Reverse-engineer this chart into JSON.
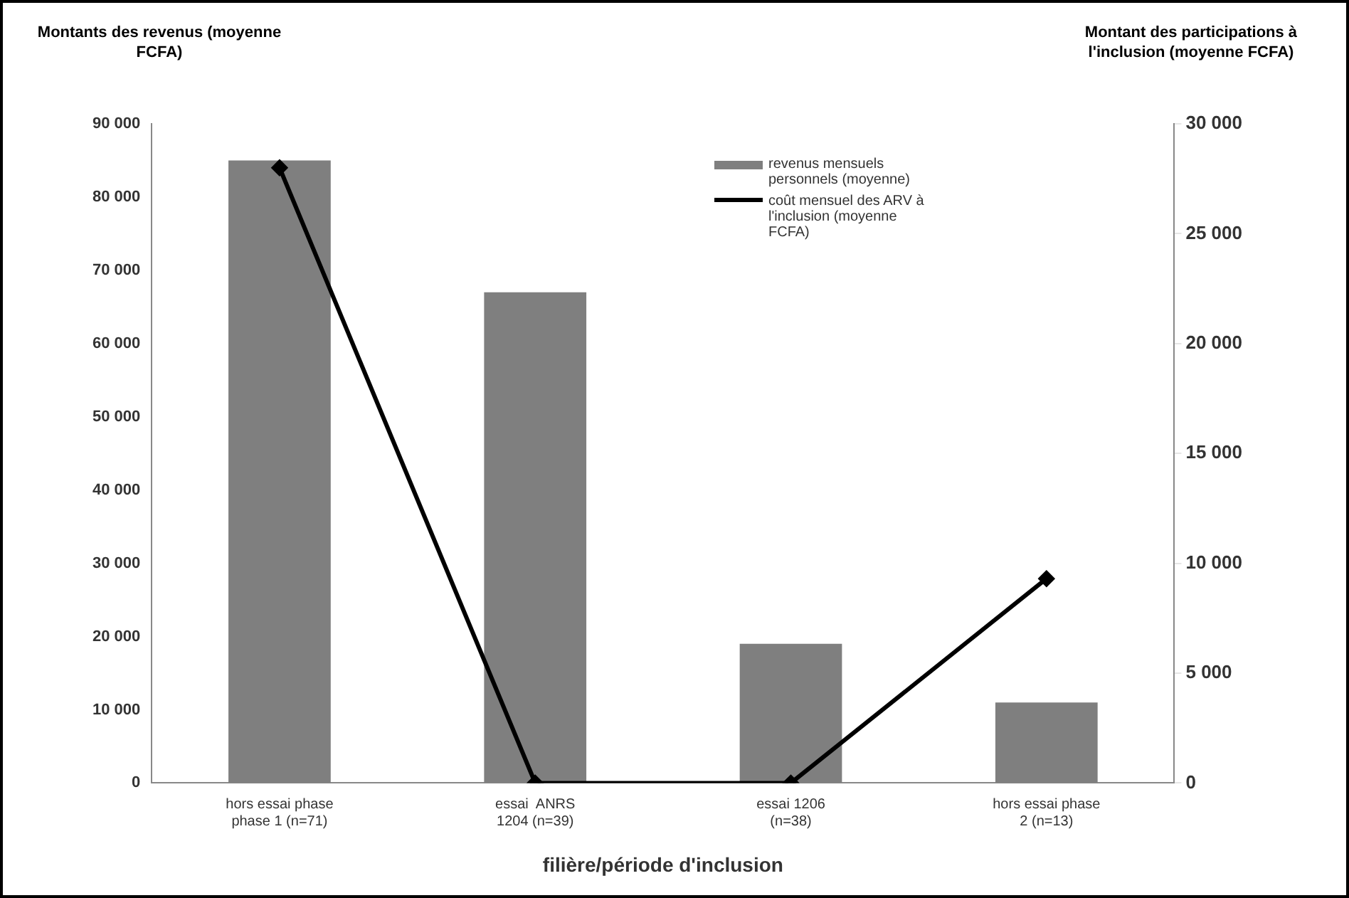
{
  "chart_data": {
    "type": "bar",
    "xlabel": "filière/période d'inclusion",
    "ylabel": "Montants des revenus (moyenne  FCFA)",
    "y2label": "Montant des participations à l'inclusion (moyenne FCFA)",
    "categories": [
      "hors essai phase phase 1 (n=71)",
      "essai  ANRS 1204 (n=39)",
      "essai 1206 (n=38)",
      "hors essai phase 2 (n=13)"
    ],
    "series": [
      {
        "name": "revenus mensuels personnels (moyenne)",
        "color": "#7f7f7f",
        "values": [
          85000,
          67000,
          19000,
          11000
        ]
      },
      {
        "name": "coût mensuel des ARV à l'inclusion (moyenne FCFA)",
        "type": "line",
        "axis": "y2",
        "color": "#000000",
        "values": [
          28000,
          0,
          0,
          9300
        ]
      }
    ],
    "ylim": [
      0,
      90000
    ],
    "yticks": [
      {
        "value": 0,
        "label": "0"
      },
      {
        "value": 10000,
        "label": "10 000"
      },
      {
        "value": 20000,
        "label": "20 000"
      },
      {
        "value": 30000,
        "label": "30 000"
      },
      {
        "value": 40000,
        "label": "40 000"
      },
      {
        "value": 50000,
        "label": "50 000"
      },
      {
        "value": 60000,
        "label": "60 000"
      },
      {
        "value": 70000,
        "label": "70 000"
      },
      {
        "value": 80000,
        "label": "80 000"
      },
      {
        "value": 90000,
        "label": "90 000"
      }
    ],
    "y2lim": [
      0,
      30000
    ],
    "y2ticks": [
      {
        "value": 0,
        "label": "0"
      },
      {
        "value": 5000,
        "label": "5 000"
      },
      {
        "value": 10000,
        "label": "10 000"
      },
      {
        "value": 15000,
        "label": "15 000"
      },
      {
        "value": 20000,
        "label": "20 000"
      },
      {
        "value": 25000,
        "label": "25 000"
      },
      {
        "value": 30000,
        "label": "30 000"
      }
    ],
    "grid": false,
    "legend": "top right",
    "marker": "diamond",
    "line_style": "solid"
  }
}
